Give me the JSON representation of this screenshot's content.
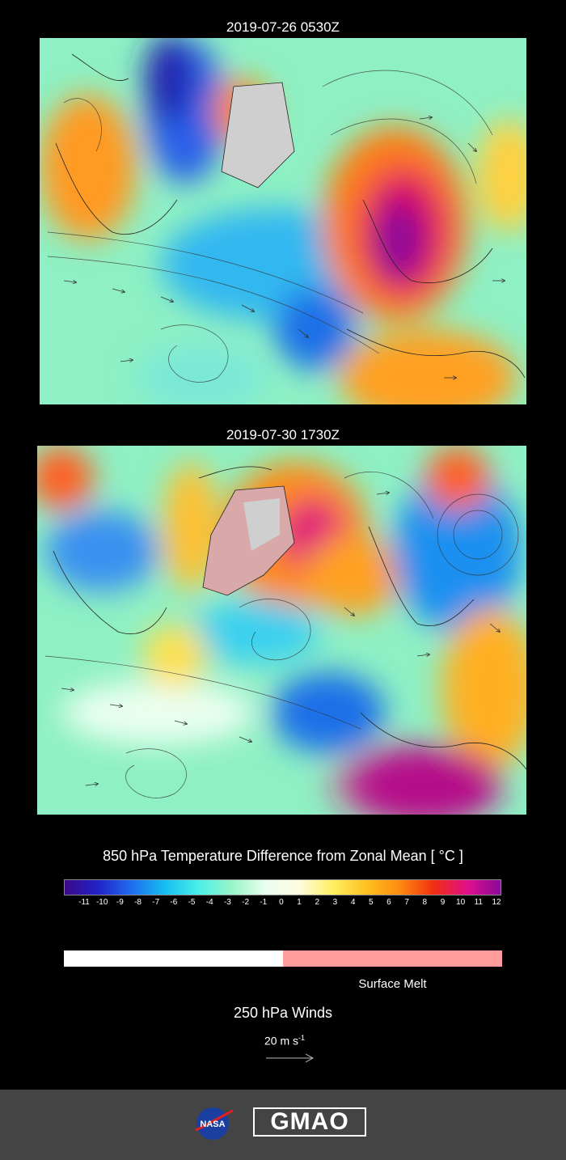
{
  "panels": [
    {
      "title": "2019-07-26 0530Z"
    },
    {
      "title": "2019-07-30 1730Z"
    }
  ],
  "legend": {
    "title": "850 hPa Temperature Difference from Zonal Mean [ °C ]",
    "ticks": [
      "-11",
      "-10",
      "-9",
      "-8",
      "-7",
      "-6",
      "-5",
      "-4",
      "-3",
      "-2",
      "-1",
      "0",
      "1",
      "2",
      "3",
      "4",
      "5",
      "6",
      "7",
      "8",
      "9",
      "10",
      "11",
      "12"
    ],
    "colors": [
      "#3b0a8a",
      "#2222c8",
      "#1f6ef0",
      "#14bff0",
      "#4bf0e8",
      "#9af5c8",
      "#eafff0",
      "#fffbe0",
      "#fff060",
      "#ffc020",
      "#ff8a10",
      "#f03010",
      "#e0108a",
      "#8a0a9a"
    ]
  },
  "melt": {
    "label": "Surface Melt",
    "no_melt_color": "#ffffff",
    "melt_color": "#ff9d9d"
  },
  "winds": {
    "title": "250 hPa Winds",
    "unit_base": "20 m s",
    "unit_exp": "-1"
  },
  "footer": {
    "nasa_label": "NASA",
    "gmao_label": "GMAO"
  }
}
